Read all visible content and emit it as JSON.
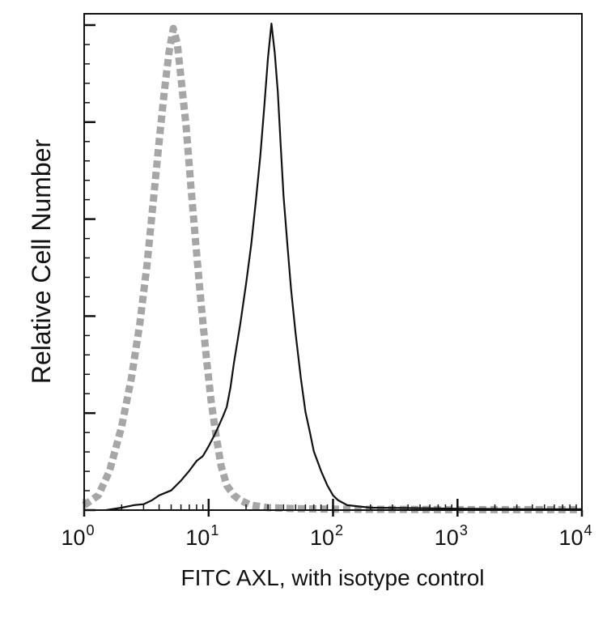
{
  "chart_data": {
    "type": "line",
    "title": "",
    "xlabel": "FITC AXL, with isotype control",
    "ylabel": "Relative Cell Number",
    "x_scale": "log",
    "xlim": [
      1,
      10000
    ],
    "ylim": [
      0,
      1.0
    ],
    "grid": false,
    "legend": "none",
    "x_ticks": [
      {
        "base": "10",
        "exp": "0",
        "value": 1
      },
      {
        "base": "10",
        "exp": "1",
        "value": 10
      },
      {
        "base": "10",
        "exp": "2",
        "value": 100
      },
      {
        "base": "10",
        "exp": "3",
        "value": 1000
      },
      {
        "base": "10",
        "exp": "4",
        "value": 10000
      }
    ],
    "series": [
      {
        "style": "dashed",
        "color": "#a6a6a6",
        "x": [
          1.0,
          1.3,
          1.6,
          2.0,
          2.4,
          2.8,
          3.2,
          3.6,
          4.0,
          4.4,
          4.8,
          5.2,
          5.6,
          6.0,
          6.6,
          7.2,
          7.9,
          8.7,
          9.6,
          10.5,
          11.5,
          12.6,
          14.0,
          16,
          18,
          22,
          30,
          50,
          100,
          1000,
          10000
        ],
        "y": [
          0.01,
          0.03,
          0.08,
          0.17,
          0.27,
          0.38,
          0.5,
          0.63,
          0.75,
          0.85,
          0.93,
          0.98,
          0.95,
          0.88,
          0.78,
          0.66,
          0.54,
          0.42,
          0.31,
          0.22,
          0.15,
          0.09,
          0.05,
          0.03,
          0.02,
          0.01,
          0.005,
          0.003,
          0.002,
          0.001,
          0.001
        ]
      },
      {
        "style": "solid",
        "color": "#111111",
        "x": [
          1.5,
          2.0,
          2.5,
          3.0,
          3.5,
          4.0,
          5.0,
          6.0,
          7.0,
          8.0,
          9.0,
          10,
          11,
          12,
          13,
          14,
          15,
          16,
          18,
          20,
          22,
          24,
          26,
          28,
          30,
          32,
          34,
          36,
          38,
          40,
          43,
          46,
          50,
          55,
          60,
          65,
          70,
          80,
          90,
          100,
          110,
          130,
          200,
          500,
          1000,
          3000,
          10000
        ],
        "y": [
          0.0,
          0.005,
          0.01,
          0.012,
          0.02,
          0.03,
          0.04,
          0.06,
          0.08,
          0.1,
          0.11,
          0.13,
          0.15,
          0.17,
          0.19,
          0.21,
          0.25,
          0.3,
          0.38,
          0.46,
          0.54,
          0.63,
          0.72,
          0.82,
          0.92,
          0.99,
          0.93,
          0.85,
          0.74,
          0.64,
          0.54,
          0.45,
          0.36,
          0.27,
          0.2,
          0.16,
          0.12,
          0.08,
          0.05,
          0.03,
          0.02,
          0.01,
          0.005,
          0.004,
          0.003,
          0.002,
          0.002
        ]
      }
    ]
  }
}
